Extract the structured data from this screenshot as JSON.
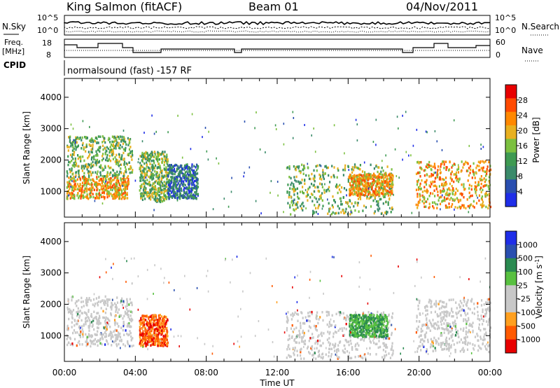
{
  "header": {
    "station": "King Salmon (fitACF)",
    "beam": "Beam 01",
    "date": "04/Nov/2011"
  },
  "panels": {
    "nsky_label": "N.Sky",
    "nsky_ticks": [
      "10^5",
      "10^0"
    ],
    "nsearch_label": "N.Search",
    "freq_label_1": "Freq.",
    "freq_label_2": "[MHz]",
    "freq_ticks": [
      "18",
      "8"
    ],
    "nave_label": "Nave",
    "nave_ticks": [
      "60",
      "0"
    ],
    "cpid_label": "CPID",
    "cpid_text": "normalsound (fast) -157 RF"
  },
  "colors": {
    "power": [
      "#1f2ee8",
      "#2a4fb0",
      "#3a8a6a",
      "#3e9a52",
      "#7cc040",
      "#e8b020",
      "#ff8800",
      "#ff4a00",
      "#e80000"
    ],
    "velocity": [
      "#e80000",
      "#ff5a00",
      "#ffa020",
      "#c8c8c8",
      "#c8c8c8",
      "#58c040",
      "#2a8a50",
      "#2a4fb0",
      "#1f2ee8"
    ],
    "ground_scatter": "#c8c8c8"
  },
  "chart_data": [
    {
      "type": "heatmap",
      "title": "Power",
      "xlabel": "Time UT",
      "ylabel": "Slant Range [km]",
      "x_ticks": [
        "00:00",
        "04:00",
        "08:00",
        "12:00",
        "16:00",
        "20:00",
        "00:00"
      ],
      "xlim_hours": [
        0,
        24
      ],
      "y_ticks": [
        1000,
        2000,
        3000,
        4000
      ],
      "ylim_km": [
        180,
        4600
      ],
      "colorbar": {
        "label": "Power [dB]",
        "ticks": [
          "4",
          "8",
          "12",
          "16",
          "20",
          "24",
          "28"
        ]
      },
      "scatter_regions_hours_km": [
        {
          "t": [
            0.1,
            3.6
          ],
          "r": [
            800,
            1500
          ],
          "level": "high"
        },
        {
          "t": [
            0.1,
            3.8
          ],
          "r": [
            1500,
            2800
          ],
          "level": "mid"
        },
        {
          "t": [
            4.2,
            5.8
          ],
          "r": [
            700,
            2300
          ],
          "level": "mid"
        },
        {
          "t": [
            5.8,
            7.5
          ],
          "r": [
            800,
            1900
          ],
          "level": "low"
        },
        {
          "t": [
            12.5,
            18.5
          ],
          "r": [
            300,
            1900
          ],
          "level": "mid"
        },
        {
          "t": [
            16.0,
            18.5
          ],
          "r": [
            900,
            1600
          ],
          "level": "high"
        },
        {
          "t": [
            19.8,
            24.0
          ],
          "r": [
            500,
            2000
          ],
          "level": "high"
        }
      ]
    },
    {
      "type": "heatmap",
      "title": "Velocity",
      "xlabel": "Time UT",
      "ylabel": "Slant Range [km]",
      "x_ticks": [
        "00:00",
        "04:00",
        "08:00",
        "12:00",
        "16:00",
        "20:00",
        "00:00"
      ],
      "xlim_hours": [
        0,
        24
      ],
      "y_ticks": [
        1000,
        2000,
        3000,
        4000
      ],
      "ylim_km": [
        180,
        4600
      ],
      "colorbar": {
        "label": "Velocity [m s-1]",
        "ticks": [
          "1000",
          "500",
          "100",
          "25",
          "-25",
          "-100",
          "-500",
          "-1000"
        ]
      },
      "scatter_regions_hours_km": [
        {
          "t": [
            0.1,
            3.8
          ],
          "r": [
            700,
            2300
          ],
          "level": "ground"
        },
        {
          "t": [
            4.2,
            5.8
          ],
          "r": [
            700,
            1700
          ],
          "level": "neg"
        },
        {
          "t": [
            12.5,
            18.5
          ],
          "r": [
            300,
            1800
          ],
          "level": "ground"
        },
        {
          "t": [
            16.0,
            18.2
          ],
          "r": [
            1000,
            1700
          ],
          "level": "pos"
        },
        {
          "t": [
            19.8,
            24.0
          ],
          "r": [
            500,
            2200
          ],
          "level": "ground"
        }
      ]
    }
  ]
}
